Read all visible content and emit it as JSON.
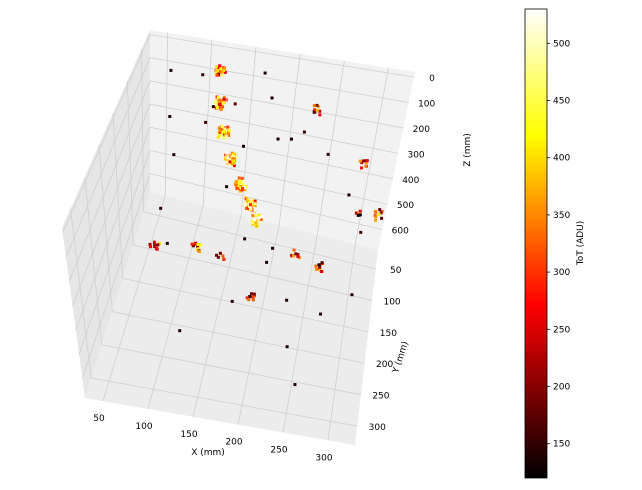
{
  "chart_data": {
    "type": "scatter",
    "projection": "3d",
    "title": "",
    "xlabel": "X (mm)",
    "ylabel": "Y (mm)",
    "zlabel": "Z (mm)",
    "xlim": [
      30,
      330
    ],
    "ylim": [
      20,
      330
    ],
    "zlim": [
      -20,
      680
    ],
    "z_inverted": true,
    "x_ticks": [
      "50",
      "100",
      "150",
      "200",
      "250",
      "300"
    ],
    "y_ticks": [
      "50",
      "100",
      "150",
      "200",
      "250",
      "300"
    ],
    "z_ticks": [
      "0",
      "100",
      "200",
      "300",
      "400",
      "500",
      "600"
    ],
    "grid": true,
    "colorbar": {
      "label": "ToT (ADU)",
      "colormap": "hot",
      "min": 120,
      "max": 530,
      "ticks": [
        "150",
        "200",
        "250",
        "300",
        "350",
        "400",
        "450",
        "500"
      ]
    },
    "clusters": [
      {
        "x": 118,
        "y": 52,
        "z": 10,
        "tot": 320,
        "n": 30,
        "spread": 6
      },
      {
        "x": 122,
        "y": 62,
        "z": 120,
        "tot": 360,
        "n": 40,
        "spread": 6
      },
      {
        "x": 130,
        "y": 75,
        "z": 200,
        "tot": 380,
        "n": 45,
        "spread": 6
      },
      {
        "x": 142,
        "y": 90,
        "z": 260,
        "tot": 400,
        "n": 40,
        "spread": 6
      },
      {
        "x": 158,
        "y": 105,
        "z": 320,
        "tot": 420,
        "n": 40,
        "spread": 6
      },
      {
        "x": 172,
        "y": 118,
        "z": 360,
        "tot": 400,
        "n": 40,
        "spread": 6
      },
      {
        "x": 182,
        "y": 128,
        "z": 390,
        "tot": 440,
        "n": 30,
        "spread": 6
      },
      {
        "x": 228,
        "y": 42,
        "z": 130,
        "tot": 280,
        "n": 10,
        "spread": 5
      },
      {
        "x": 290,
        "y": 55,
        "z": 280,
        "tot": 260,
        "n": 9,
        "spread": 5
      },
      {
        "x": 318,
        "y": 80,
        "z": 400,
        "tot": 300,
        "n": 10,
        "spread": 5
      },
      {
        "x": 295,
        "y": 78,
        "z": 420,
        "tot": 240,
        "n": 5,
        "spread": 4
      },
      {
        "x": 260,
        "y": 200,
        "z": 340,
        "tot": 280,
        "n": 10,
        "spread": 5
      },
      {
        "x": 235,
        "y": 205,
        "z": 300,
        "tot": 270,
        "n": 9,
        "spread": 5
      },
      {
        "x": 130,
        "y": 215,
        "z": 300,
        "tot": 300,
        "n": 12,
        "spread": 5
      },
      {
        "x": 96,
        "y": 255,
        "z": 210,
        "tot": 300,
        "n": 12,
        "spread": 5
      },
      {
        "x": 195,
        "y": 245,
        "z": 380,
        "tot": 260,
        "n": 10,
        "spread": 5
      },
      {
        "x": 150,
        "y": 175,
        "z": 440,
        "tot": 240,
        "n": 6,
        "spread": 5
      },
      {
        "x": 140,
        "y": 60,
        "z": 350,
        "tot": 300,
        "n": 4,
        "spread": 4
      }
    ],
    "scattered_points": [
      [
        60,
        40,
        80,
        140
      ],
      [
        70,
        80,
        160,
        140
      ],
      [
        80,
        100,
        260,
        140
      ],
      [
        95,
        35,
        90,
        150
      ],
      [
        165,
        35,
        40,
        140
      ],
      [
        175,
        30,
        150,
        140
      ],
      [
        140,
        70,
        90,
        180
      ],
      [
        120,
        90,
        60,
        140
      ],
      [
        105,
        55,
        230,
        160
      ],
      [
        190,
        60,
        230,
        140
      ],
      [
        220,
        80,
        130,
        150
      ],
      [
        250,
        100,
        150,
        140
      ],
      [
        205,
        150,
        430,
        140
      ],
      [
        260,
        150,
        460,
        140
      ],
      [
        230,
        190,
        520,
        140
      ],
      [
        175,
        240,
        430,
        140
      ],
      [
        300,
        120,
        380,
        160
      ],
      [
        280,
        90,
        320,
        140
      ],
      [
        240,
        260,
        520,
        140
      ],
      [
        255,
        300,
        560,
        140
      ],
      [
        110,
        260,
        180,
        140
      ],
      [
        180,
        210,
        250,
        140
      ],
      [
        205,
        210,
        330,
        140
      ],
      [
        160,
        120,
        120,
        140
      ],
      [
        75,
        140,
        380,
        150
      ],
      [
        150,
        155,
        200,
        140
      ],
      [
        270,
        240,
        420,
        140
      ],
      [
        300,
        210,
        400,
        140
      ],
      [
        210,
        120,
        60,
        140
      ],
      [
        130,
        300,
        420,
        140
      ]
    ]
  }
}
